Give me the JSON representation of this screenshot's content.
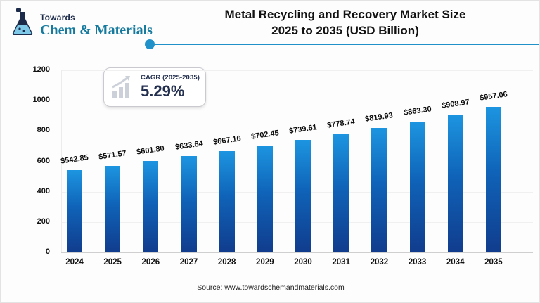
{
  "logo": {
    "top": "Towards",
    "bottom": "Chem & Materials"
  },
  "header": {
    "title_line1": "Metal Recycling and Recovery Market Size",
    "title_line2": "2025 to 2035 (USD Billion)"
  },
  "cagr_badge": {
    "label": "CAGR (2025-2035)",
    "value": "5.29%"
  },
  "source": "Source: www.towardschemandmaterials.com",
  "colors": {
    "bar_gradient_top": "#1d95e0",
    "bar_gradient_bottom": "#113c8d",
    "accent_line": "#2191c9",
    "navy_text": "#232f4e",
    "brand_teal": "#157a9e"
  },
  "chart_data": {
    "type": "bar",
    "title": "Metal Recycling and Recovery Market Size 2025 to 2035 (USD Billion)",
    "categories": [
      "2024",
      "2025",
      "2026",
      "2027",
      "2028",
      "2029",
      "2030",
      "2031",
      "2032",
      "2033",
      "2034",
      "2035"
    ],
    "values": [
      542.85,
      571.57,
      601.8,
      633.64,
      667.16,
      702.45,
      739.61,
      778.74,
      819.93,
      863.3,
      908.97,
      957.06
    ],
    "labels": [
      "$542.85",
      "$571.57",
      "$601.80",
      "$633.64",
      "$667.16",
      "$702.45",
      "$739.61",
      "$778.74",
      "$819.93",
      "$863.30",
      "$908.97",
      "$957.06"
    ],
    "xlabel": "",
    "ylabel": "",
    "ylim": [
      0,
      1200
    ],
    "yticks": [
      0,
      200,
      400,
      600,
      800,
      1000,
      1200
    ],
    "grid": true,
    "legend": false,
    "value_label_prefix": "$",
    "unit": "USD Billion"
  }
}
